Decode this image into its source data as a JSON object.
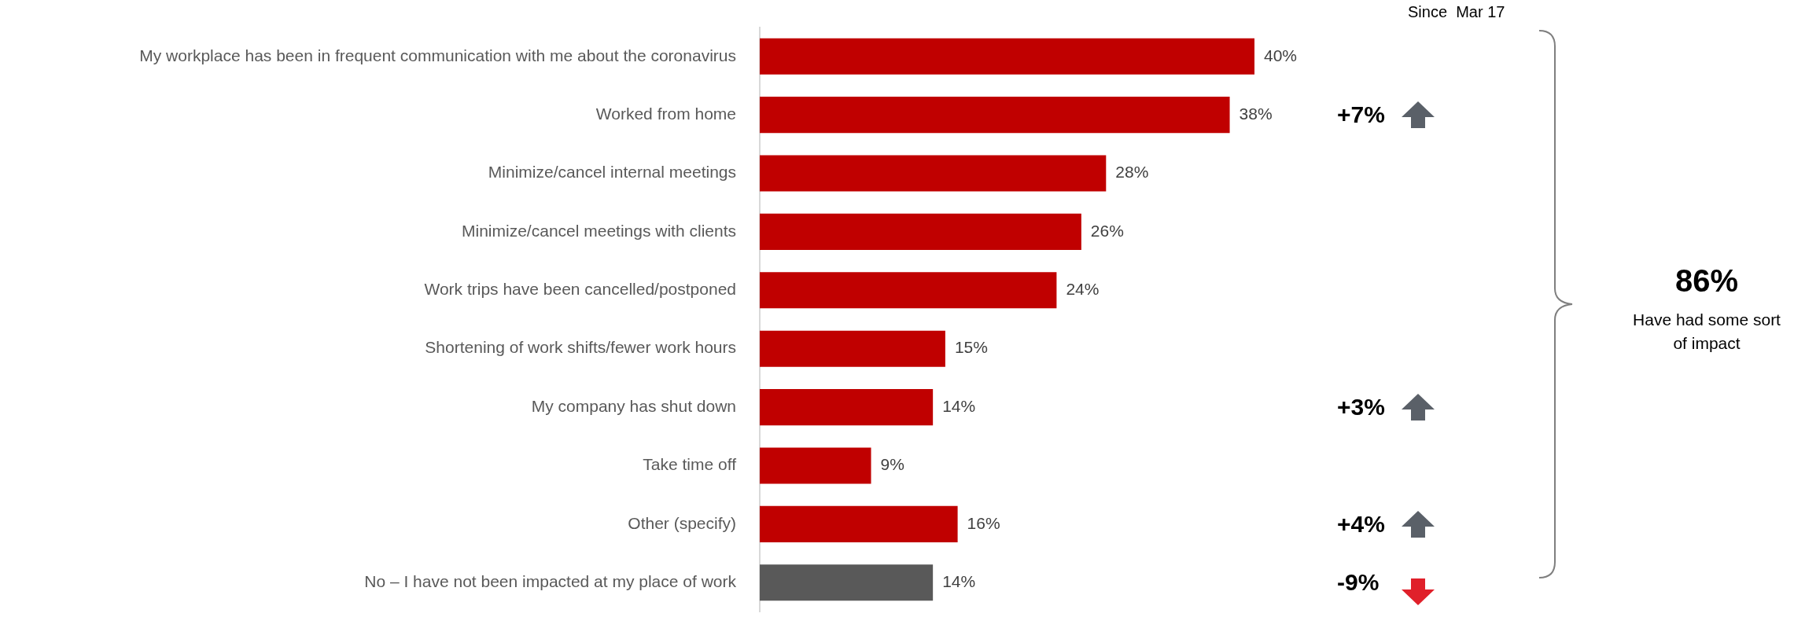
{
  "chart_data": {
    "type": "bar",
    "orientation": "horizontal",
    "categories": [
      "My workplace has been in frequent communication with me about the coronavirus",
      "Worked from home",
      "Minimize/cancel internal meetings",
      "Minimize/cancel meetings with clients",
      "Work trips have been cancelled/postponed",
      "Shortening of work shifts/fewer work hours",
      "My company has shut down",
      "Take time off",
      "Other (specify)",
      "No – I have not been impacted at my place of work"
    ],
    "values": [
      40,
      38,
      28,
      26,
      24,
      15,
      14,
      9,
      16,
      14
    ],
    "value_labels": [
      "40%",
      "38%",
      "28%",
      "26%",
      "24%",
      "15%",
      "14%",
      "9%",
      "16%",
      "14%"
    ],
    "colors": [
      "#c00000",
      "#c00000",
      "#c00000",
      "#c00000",
      "#c00000",
      "#c00000",
      "#c00000",
      "#c00000",
      "#c00000",
      "#595959"
    ],
    "annotations": [
      "Since  Mar 17",
      "+7%",
      "+3%",
      "+4%",
      "-9%",
      "86%",
      "Have had some sort of impact"
    ],
    "legend": false
  }
}
